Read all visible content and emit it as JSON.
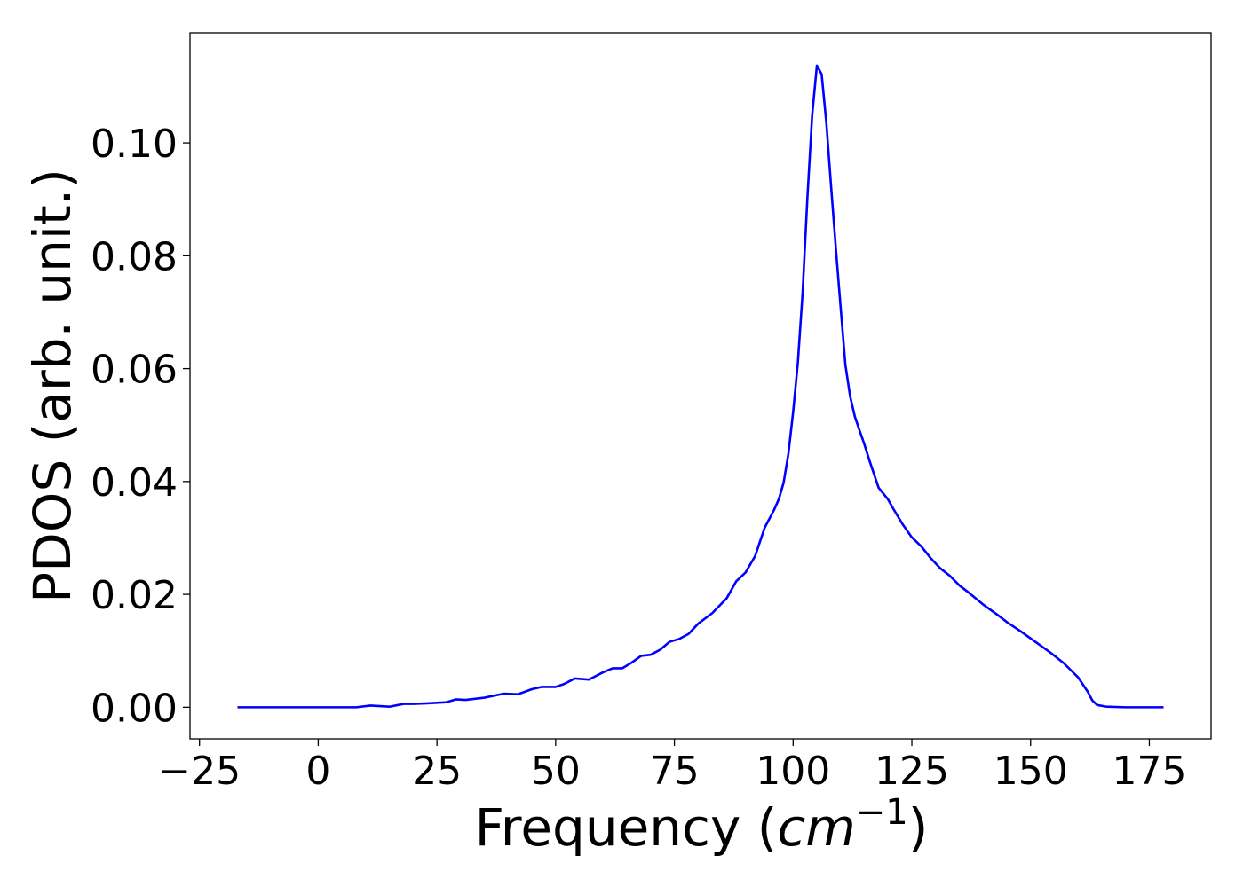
{
  "chart_data": {
    "type": "line",
    "title": "",
    "xlabel": "Frequency",
    "xlabel_math": "cm",
    "xlabel_sup": "−1",
    "ylabel": "PDOS (arb. unit.)",
    "xlim": [
      -27,
      188
    ],
    "ylim": [
      -0.0056,
      0.1195
    ],
    "xticks": [
      -25,
      0,
      25,
      50,
      75,
      100,
      125,
      150,
      175
    ],
    "xtick_labels": [
      "−25",
      "0",
      "25",
      "50",
      "75",
      "100",
      "125",
      "150",
      "175"
    ],
    "yticks": [
      0.0,
      0.02,
      0.04,
      0.06,
      0.08,
      0.1
    ],
    "ytick_labels": [
      "0.00",
      "0.02",
      "0.04",
      "0.06",
      "0.08",
      "0.10"
    ],
    "grid": false,
    "series": [
      {
        "color": "#0000ff",
        "x": [
          -17,
          -10,
          0,
          5,
          8,
          11,
          15,
          18,
          20,
          23,
          27,
          29,
          31,
          35,
          39,
          42,
          45,
          47,
          50,
          52,
          54,
          57,
          60,
          62,
          64,
          66,
          68,
          70,
          72,
          74,
          76,
          78,
          80,
          83,
          86,
          88,
          90,
          92,
          94,
          96,
          97,
          98,
          99,
          100,
          101,
          102,
          103,
          104,
          105,
          106,
          107,
          108,
          109,
          110,
          111,
          112,
          113,
          114,
          115,
          116,
          118,
          120,
          121,
          123,
          125,
          127,
          129,
          131,
          133,
          135,
          137,
          140,
          143,
          145,
          148,
          151,
          154,
          157,
          160,
          162,
          163,
          164,
          166,
          170,
          178
        ],
        "values": [
          0.0,
          0.0,
          0.0,
          0.0,
          0.0,
          0.0003,
          0.0001,
          0.0006,
          0.0006,
          0.0007,
          0.0009,
          0.0014,
          0.0013,
          0.0017,
          0.0024,
          0.0023,
          0.0032,
          0.0036,
          0.0036,
          0.0042,
          0.0051,
          0.0049,
          0.0062,
          0.0069,
          0.0069,
          0.0079,
          0.0091,
          0.0093,
          0.0102,
          0.0116,
          0.0121,
          0.013,
          0.0148,
          0.0167,
          0.0193,
          0.0223,
          0.0239,
          0.0268,
          0.0318,
          0.035,
          0.0369,
          0.0398,
          0.0449,
          0.0523,
          0.0611,
          0.0735,
          0.0902,
          0.1048,
          0.1137,
          0.1122,
          0.1035,
          0.0922,
          0.0813,
          0.0709,
          0.0607,
          0.0551,
          0.0515,
          0.049,
          0.0466,
          0.0439,
          0.0389,
          0.0368,
          0.0353,
          0.0325,
          0.0301,
          0.0285,
          0.0264,
          0.0246,
          0.0233,
          0.0216,
          0.0203,
          0.0182,
          0.0164,
          0.0151,
          0.0134,
          0.0116,
          0.0098,
          0.0078,
          0.0053,
          0.0028,
          0.0012,
          0.0004,
          0.0001,
          0.0,
          0.0
        ]
      }
    ]
  }
}
